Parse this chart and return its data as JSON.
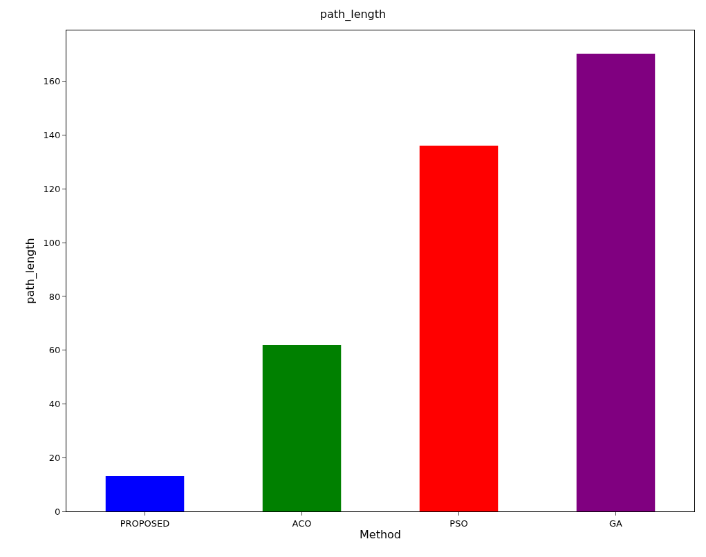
{
  "chart_data": {
    "type": "bar",
    "title": "path_length",
    "xlabel": "Method",
    "ylabel": "path_length",
    "categories": [
      "PROPOSED",
      "ACO",
      "PSO",
      "GA"
    ],
    "values": [
      13.1,
      62.0,
      136.1,
      170.3
    ],
    "colors": [
      "#0000ff",
      "#008000",
      "#ff0000",
      "#800080"
    ],
    "ylim": [
      0,
      179
    ],
    "yticks": [
      0,
      20,
      40,
      60,
      80,
      100,
      120,
      140,
      160
    ]
  }
}
